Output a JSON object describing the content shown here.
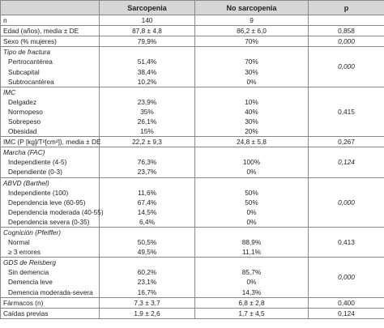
{
  "table": {
    "header": [
      "Sarcopenia",
      "No sarcopenia",
      "p"
    ],
    "rows": [
      {
        "label": "n",
        "sarcopenia": "140",
        "no_sarcopenia": "9"
      },
      {
        "label": "Edad (años), media ± DE",
        "sarcopenia": "87,8 ± 4,8",
        "no_sarcopenia": "86,2 ± 6,0",
        "p": "0,858",
        "p_italic": false
      },
      {
        "label": "Sexo (% mujeres)",
        "sarcopenia": "79,9%",
        "no_sarcopenia": "70%",
        "p": "0,000",
        "p_italic": true
      },
      {
        "title": "Tipo de fractura",
        "p": "0,000",
        "p_italic": true,
        "items": [
          {
            "label": "Pertrocantérea",
            "sarcopenia": "51,4%",
            "no_sarcopenia": "70%"
          },
          {
            "label": "Subcapital",
            "sarcopenia": "38,4%",
            "no_sarcopenia": "30%"
          },
          {
            "label": "Subtrocantérea",
            "sarcopenia": "10,2%",
            "no_sarcopenia": "0%"
          }
        ]
      },
      {
        "title": "IMC",
        "p": "0,415",
        "p_italic": false,
        "items": [
          {
            "label": "Delgadez",
            "sarcopenia": "23,9%",
            "no_sarcopenia": "10%"
          },
          {
            "label": "Normopeso",
            "sarcopenia": "35%",
            "no_sarcopenia": "40%"
          },
          {
            "label": "Sobrepeso",
            "sarcopenia": "26,1%",
            "no_sarcopenia": "30%"
          },
          {
            "label": "Obesidad",
            "sarcopenia": "15%",
            "no_sarcopenia": "20%"
          }
        ]
      },
      {
        "label": "IMC (P [kg]/T²[cm²]), media ± DE",
        "sarcopenia": "22,2 ± 9,3",
        "no_sarcopenia": "24,8 ± 5,8",
        "p": "0,267",
        "p_italic": false
      },
      {
        "title": "Marcha (FAC)",
        "p": "0,124",
        "p_italic": true,
        "items": [
          {
            "label": "Independiente (4-5)",
            "sarcopenia": "76,3%",
            "no_sarcopenia": "100%"
          },
          {
            "label": "Dependiente (0-3)",
            "sarcopenia": "23,7%",
            "no_sarcopenia": "0%"
          }
        ]
      },
      {
        "title": "ABVD (Barthel)",
        "p": "0,000",
        "p_italic": true,
        "items": [
          {
            "label": "Independiente (100)",
            "sarcopenia": "11,6%",
            "no_sarcopenia": "50%"
          },
          {
            "label": "Dependencia leve (60-95)",
            "sarcopenia": "67,4%",
            "no_sarcopenia": "50%"
          },
          {
            "label": "Dependencia moderada (40-55)",
            "sarcopenia": "14,5%",
            "no_sarcopenia": "0%"
          },
          {
            "label": "Dependencia severa (0-35)",
            "sarcopenia": "6,4%",
            "no_sarcopenia": "0%"
          }
        ]
      },
      {
        "title": "Cognición (Pfeiffer)",
        "p": "0,413",
        "p_italic": false,
        "items": [
          {
            "label": "Normal",
            "sarcopenia": "50,5%",
            "no_sarcopenia": "88,9%"
          },
          {
            "label": "≥ 3 errores",
            "sarcopenia": "49,5%",
            "no_sarcopenia": "11,1%"
          }
        ]
      },
      {
        "title": "GDS de Reisberg",
        "p": "0,000",
        "p_italic": true,
        "items": [
          {
            "label": "Sin demencia",
            "sarcopenia": "60,2%",
            "no_sarcopenia": "85,7%"
          },
          {
            "label": "Demencia leve",
            "sarcopenia": "23,1%",
            "no_sarcopenia": "0%"
          },
          {
            "label": "Demencia moderada-severa",
            "sarcopenia": "16,7%",
            "no_sarcopenia": "14,3%"
          }
        ]
      },
      {
        "label": "Fármacos (n)",
        "sarcopenia": "7,3 ± 3,7",
        "no_sarcopenia": "6,8 ± 2,8",
        "p": "0,400",
        "p_italic": false
      },
      {
        "label": "Caídas previas",
        "sarcopenia": "1,9 ± 2,6",
        "no_sarcopenia": "1,7 ± 4,5",
        "p": "0,124",
        "p_italic": false
      }
    ]
  }
}
